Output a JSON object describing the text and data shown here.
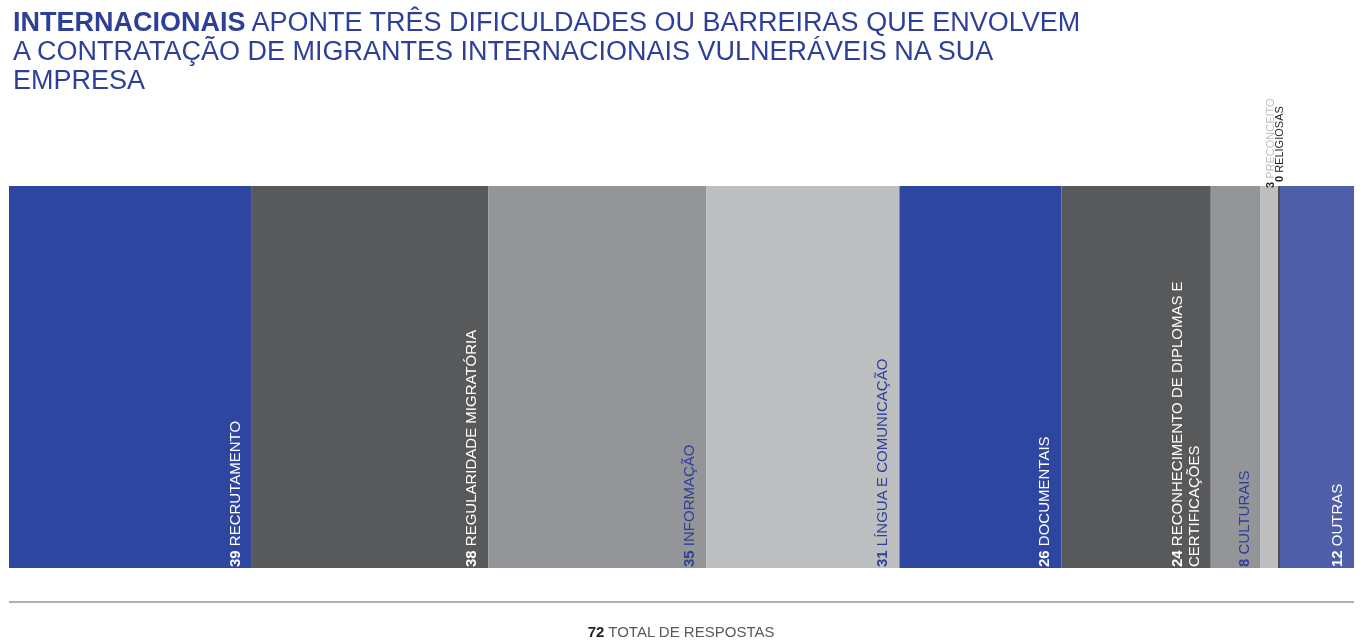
{
  "chart_data": {
    "type": "bar",
    "orientation": "horizontal",
    "stacked": true,
    "title": "INTERNACIONAIS APONTE TRÊS DIFICULDADES OU BARREIRAS QUE ENVOLVEM A CONTRATAÇÃO DE MIGRANTES INTERNACIONAIS VULNERÁVEIS NA SUA EMPRESA",
    "categories": [
      null
    ],
    "series": [
      {
        "name": "RECRUTAMENTO",
        "color": "#2e46a0",
        "values": [
          39
        ]
      },
      {
        "name": "REGULARIDADE MIGRATÓRIA",
        "color": "#58595b",
        "values": [
          38
        ]
      },
      {
        "name": "INFORMAÇÃO",
        "color": "#939598",
        "values": [
          35
        ]
      },
      {
        "name": "LÍNGUA E COMUNICAÇÃO",
        "color": "#bcbec0",
        "values": [
          31
        ]
      },
      {
        "name": "DOCUMENTAIS",
        "color": "#2e46a0",
        "values": [
          26
        ]
      },
      {
        "name": "RECONHECIMENTO DE DIPLOMAS E CERTIFICAÇÕES",
        "color": "#58595b",
        "values": [
          24
        ]
      },
      {
        "name": "CULTURAIS",
        "color": "#939598",
        "values": [
          8
        ]
      },
      {
        "name": "PRECONCEITO",
        "color": "#bcbec0",
        "values": [
          3
        ]
      },
      {
        "name": "RELIGIOSAS",
        "color": "#231f20",
        "values": [
          0
        ]
      },
      {
        "name": "OUTRAS",
        "color": "#4f5ea9",
        "values": [
          12
        ]
      }
    ],
    "data_labels": true,
    "legend": false,
    "annotations": [
      "72 TOTAL DE RESPOSTAS"
    ]
  }
}
